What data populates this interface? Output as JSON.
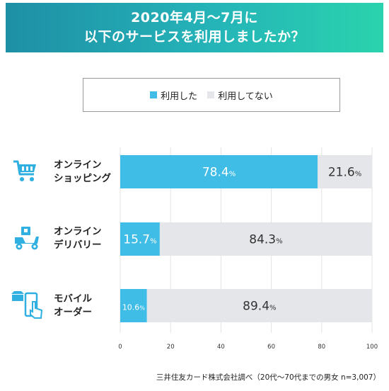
{
  "header": {
    "title_line1": "2020年4月〜7月に",
    "title_line2": "以下のサービスを利用しましたか？"
  },
  "legend": {
    "used": "利用した",
    "not_used": "利用してない"
  },
  "colors": {
    "used": "#3fbde6",
    "not_used": "#e4e6ea",
    "icon": "#2fb0e0"
  },
  "rows": [
    {
      "label_line1": "オンライン",
      "label_line2": "ショッピング",
      "icon": "cart-icon"
    },
    {
      "label_line1": "オンライン",
      "label_line2": "デリバリー",
      "icon": "delivery-scooter-icon"
    },
    {
      "label_line1": "モバイル",
      "label_line2": "オーダー",
      "icon": "mobile-order-icon"
    }
  ],
  "chart_data": {
    "type": "bar",
    "orientation": "horizontal",
    "stacked": true,
    "categories": [
      "オンライン ショッピング",
      "オンライン デリバリー",
      "モバイル オーダー"
    ],
    "series": [
      {
        "name": "利用した",
        "values": [
          78.4,
          15.7,
          10.6
        ]
      },
      {
        "name": "利用してない",
        "values": [
          21.6,
          84.3,
          89.4
        ]
      }
    ],
    "value_labels": {
      "used": [
        "78.4",
        "15.7",
        "10.6"
      ],
      "not_used": [
        "21.6",
        "84.3",
        "89.4"
      ]
    },
    "unit": "%",
    "xlim": [
      0,
      100
    ],
    "xticks": [
      0,
      20,
      40,
      60,
      80,
      100
    ],
    "grid": true,
    "legend_position": "top"
  },
  "source": "三井住友カード株式会社調べ（20代〜70代までの男女  n=3,007）"
}
